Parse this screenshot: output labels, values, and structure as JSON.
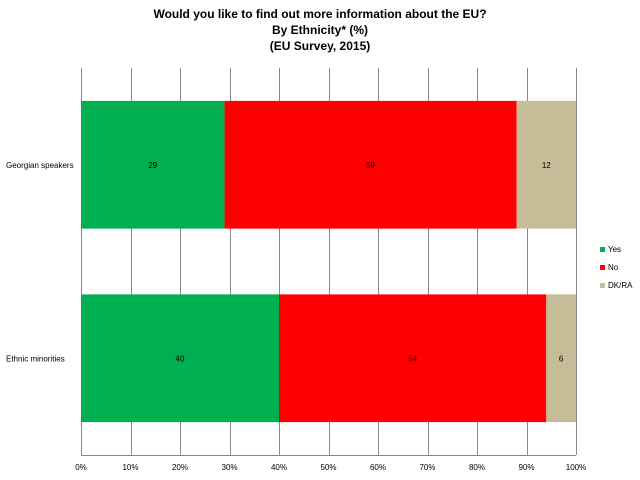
{
  "chart_data": {
    "type": "bar",
    "orientation": "horizontal",
    "stacked": true,
    "title": "Would you like to find out more information about the EU?",
    "subtitle": "By Ethnicity* (%)",
    "source": "(EU Survey, 2015)",
    "categories": [
      "Georgian speakers",
      "Ethnic minorities"
    ],
    "series": [
      {
        "name": "Yes",
        "values": [
          29,
          40
        ],
        "color": "#00b050"
      },
      {
        "name": "No",
        "values": [
          59,
          54
        ],
        "color": "#ff0000"
      },
      {
        "name": "DK/RA",
        "values": [
          12,
          6
        ],
        "color": "#c4bd97"
      }
    ],
    "xlim": [
      0,
      100
    ],
    "xticks": [
      "0%",
      "10%",
      "20%",
      "30%",
      "40%",
      "50%",
      "60%",
      "70%",
      "80%",
      "90%",
      "100%"
    ],
    "grid": true,
    "legend_position": "right"
  }
}
